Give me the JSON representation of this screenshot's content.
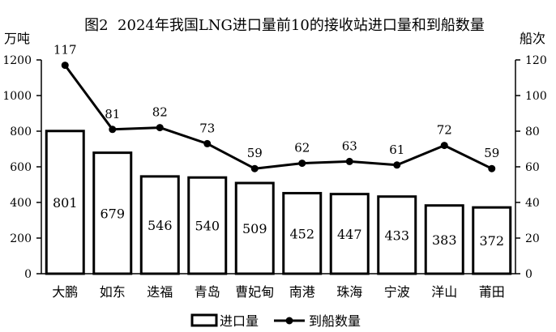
{
  "chart_data": {
    "type": "bar",
    "title": "图2  2024年我国LNG进口量前10的接收站进口量和到船数量",
    "xlabel": "",
    "ylabel": "万吨",
    "y2label": "船次",
    "categories": [
      "大鹏",
      "如东",
      "迭福",
      "青岛",
      "曹妃甸",
      "南港",
      "珠海",
      "宁波",
      "洋山",
      "莆田"
    ],
    "series": [
      {
        "name": "进口量",
        "type": "bar",
        "axis": "left",
        "values": [
          801,
          679,
          546,
          540,
          509,
          452,
          447,
          433,
          383,
          372
        ]
      },
      {
        "name": "到船数量",
        "type": "line",
        "axis": "right",
        "marker": "circle",
        "values": [
          117,
          81,
          82,
          73,
          59,
          62,
          63,
          61,
          72,
          59
        ]
      }
    ],
    "ylim": [
      0,
      1200
    ],
    "y2lim": [
      0,
      120
    ],
    "yticks": [
      0,
      200,
      400,
      600,
      800,
      1000,
      1200
    ],
    "y2ticks": [
      0,
      20,
      40,
      60,
      80,
      100,
      120
    ],
    "data_labels": true,
    "grid": false,
    "legend": "bottom",
    "colors": {
      "background": "#ffffff",
      "bar_fill": "#ffffff",
      "bar_outline": "#000000",
      "line": "#000000",
      "axis": "#000000"
    }
  }
}
